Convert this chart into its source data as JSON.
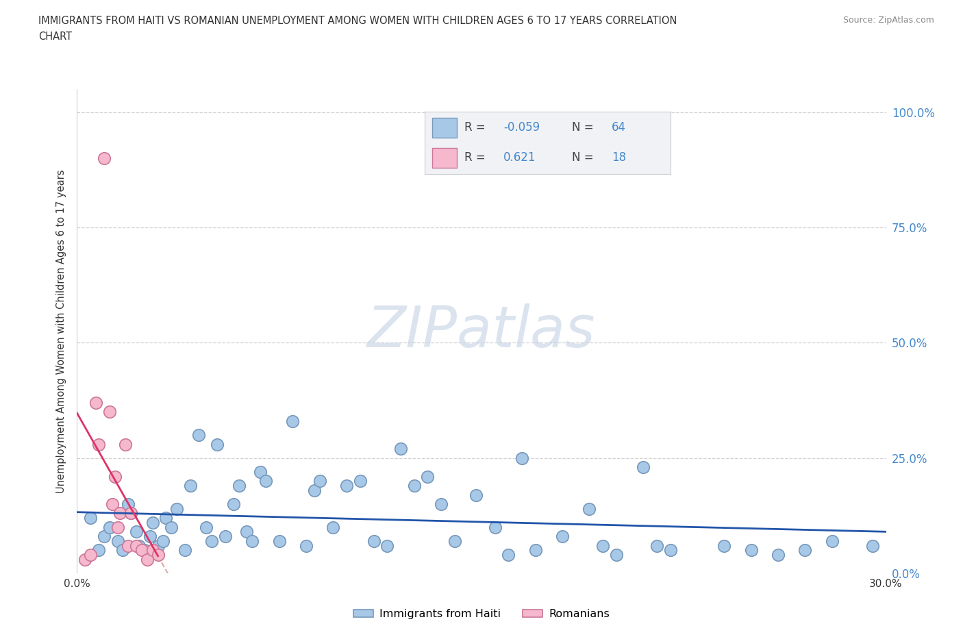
{
  "title_line1": "IMMIGRANTS FROM HAITI VS ROMANIAN UNEMPLOYMENT AMONG WOMEN WITH CHILDREN AGES 6 TO 17 YEARS CORRELATION",
  "title_line2": "CHART",
  "source": "Source: ZipAtlas.com",
  "ylabel": "Unemployment Among Women with Children Ages 6 to 17 years",
  "xlim": [
    0.0,
    0.3
  ],
  "ylim": [
    0.0,
    1.05
  ],
  "ytick_values": [
    0.0,
    0.25,
    0.5,
    0.75,
    1.0
  ],
  "ytick_labels": [
    "0.0%",
    "25.0%",
    "50.0%",
    "75.0%",
    "100.0%"
  ],
  "xtick_values": [
    0.0,
    0.05,
    0.1,
    0.15,
    0.2,
    0.25,
    0.3
  ],
  "xtick_labels": [
    "0.0%",
    "",
    "",
    "",
    "",
    "",
    "30.0%"
  ],
  "haiti_fill": "#a8c8e8",
  "haiti_edge": "#7799bb",
  "romania_fill": "#f5b8cc",
  "romania_edge": "#cc7799",
  "haiti_line_color": "#2255aa",
  "romania_line_color": "#dd3366",
  "romania_dashed_color": "#ddaaaa",
  "tick_color": "#4488cc",
  "watermark_text": "ZIPatlas",
  "watermark_color": "#ccd8e8",
  "haiti_R": -0.059,
  "haiti_N": 64,
  "romania_R": 0.621,
  "romania_N": 18,
  "legend_bg": "#f0f2f5",
  "legend_border": "#cccccc",
  "haiti_x": [
    0.005,
    0.008,
    0.01,
    0.012,
    0.015,
    0.017,
    0.019,
    0.02,
    0.022,
    0.023,
    0.025,
    0.027,
    0.028,
    0.03,
    0.032,
    0.033,
    0.035,
    0.037,
    0.04,
    0.042,
    0.045,
    0.048,
    0.05,
    0.052,
    0.055,
    0.058,
    0.06,
    0.063,
    0.065,
    0.068,
    0.07,
    0.075,
    0.08,
    0.085,
    0.088,
    0.09,
    0.095,
    0.1,
    0.105,
    0.11,
    0.115,
    0.12,
    0.125,
    0.13,
    0.135,
    0.14,
    0.148,
    0.155,
    0.16,
    0.165,
    0.17,
    0.18,
    0.19,
    0.195,
    0.2,
    0.21,
    0.215,
    0.22,
    0.24,
    0.25,
    0.26,
    0.27,
    0.28,
    0.295
  ],
  "haiti_y": [
    0.12,
    0.05,
    0.08,
    0.1,
    0.07,
    0.05,
    0.15,
    0.13,
    0.09,
    0.06,
    0.05,
    0.08,
    0.11,
    0.06,
    0.07,
    0.12,
    0.1,
    0.14,
    0.05,
    0.19,
    0.3,
    0.1,
    0.07,
    0.28,
    0.08,
    0.15,
    0.19,
    0.09,
    0.07,
    0.22,
    0.2,
    0.07,
    0.33,
    0.06,
    0.18,
    0.2,
    0.1,
    0.19,
    0.2,
    0.07,
    0.06,
    0.27,
    0.19,
    0.21,
    0.15,
    0.07,
    0.17,
    0.1,
    0.04,
    0.25,
    0.05,
    0.08,
    0.14,
    0.06,
    0.04,
    0.23,
    0.06,
    0.05,
    0.06,
    0.05,
    0.04,
    0.05,
    0.07,
    0.06
  ],
  "romania_x": [
    0.003,
    0.005,
    0.007,
    0.008,
    0.01,
    0.012,
    0.013,
    0.014,
    0.015,
    0.016,
    0.018,
    0.019,
    0.02,
    0.022,
    0.024,
    0.026,
    0.028,
    0.03
  ],
  "romania_y": [
    0.03,
    0.04,
    0.37,
    0.28,
    0.9,
    0.35,
    0.15,
    0.21,
    0.1,
    0.13,
    0.28,
    0.06,
    0.13,
    0.06,
    0.05,
    0.03,
    0.05,
    0.04
  ]
}
